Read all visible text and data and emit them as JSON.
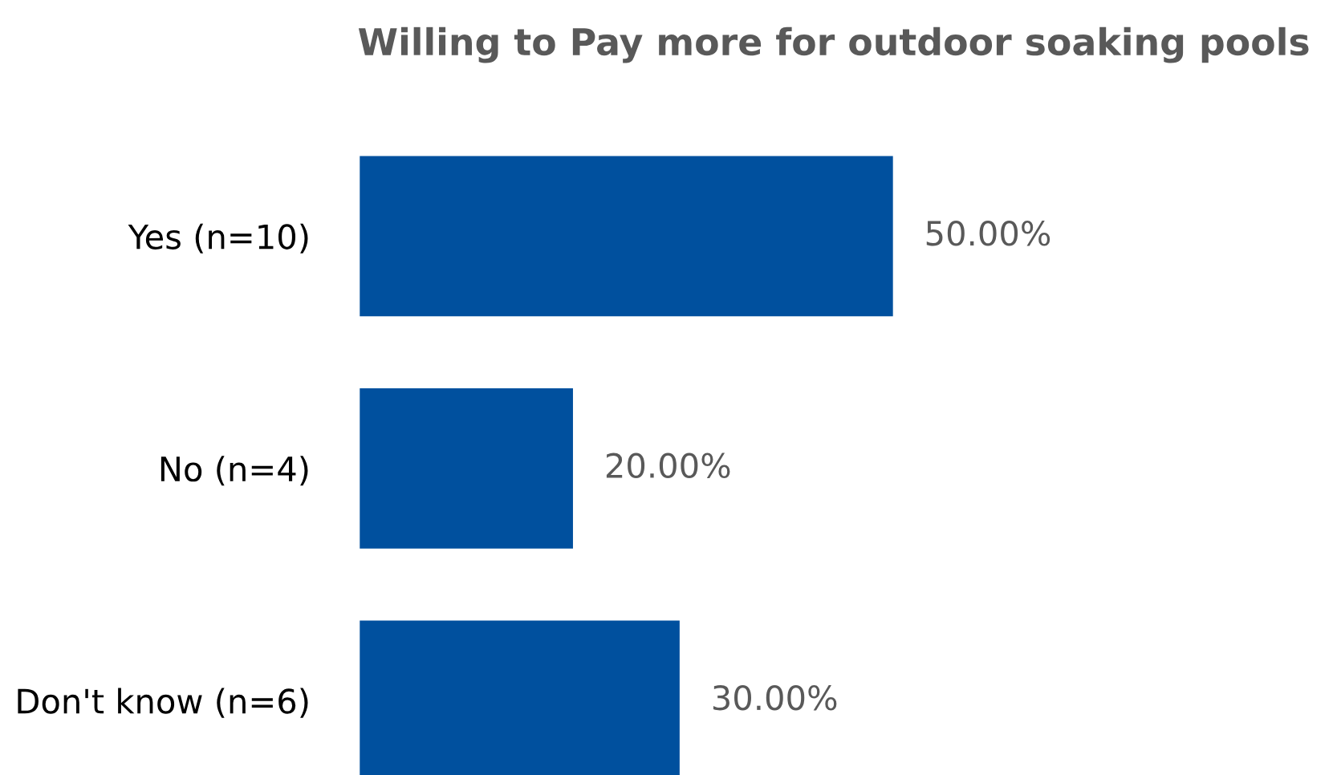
{
  "chart_data": {
    "type": "bar",
    "orientation": "horizontal",
    "title": "Willing to Pay more for outdoor soaking pools",
    "categories": [
      "Yes (n=10)",
      "No (n=4)",
      "Don't know (n=6)"
    ],
    "values": [
      50,
      20,
      30
    ],
    "value_labels": [
      "50.00%",
      "20.00%",
      "30.00%"
    ],
    "color": "#00509e",
    "grid": false,
    "legend": false
  }
}
